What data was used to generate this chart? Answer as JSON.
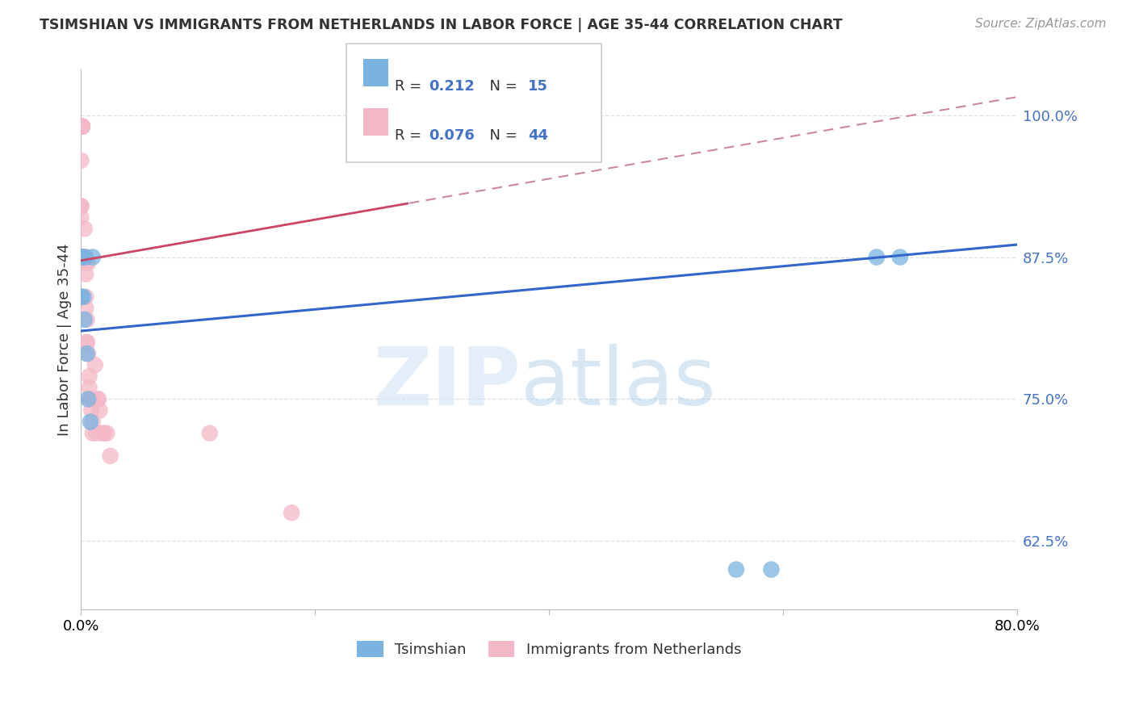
{
  "title": "TSIMSHIAN VS IMMIGRANTS FROM NETHERLANDS IN LABOR FORCE | AGE 35-44 CORRELATION CHART",
  "source": "Source: ZipAtlas.com",
  "ylabel": "In Labor Force | Age 35-44",
  "x_min": 0.0,
  "x_max": 0.8,
  "y_min": 0.565,
  "y_max": 1.04,
  "tsimshian_x": [
    0.0,
    0.0,
    0.0,
    0.0,
    0.002,
    0.003,
    0.004,
    0.005,
    0.006,
    0.008,
    0.01,
    0.56,
    0.59,
    0.68,
    0.7
  ],
  "tsimshian_y": [
    0.875,
    0.875,
    0.875,
    0.84,
    0.84,
    0.82,
    0.875,
    0.79,
    0.75,
    0.73,
    0.875,
    0.6,
    0.6,
    0.875,
    0.875
  ],
  "netherlands_x": [
    0.0,
    0.0,
    0.0,
    0.0,
    0.0,
    0.001,
    0.001,
    0.001,
    0.001,
    0.002,
    0.002,
    0.002,
    0.002,
    0.003,
    0.003,
    0.003,
    0.004,
    0.004,
    0.004,
    0.004,
    0.005,
    0.005,
    0.005,
    0.006,
    0.006,
    0.007,
    0.007,
    0.008,
    0.008,
    0.009,
    0.009,
    0.01,
    0.01,
    0.012,
    0.013,
    0.014,
    0.015,
    0.016,
    0.018,
    0.02,
    0.022,
    0.025,
    0.11,
    0.18
  ],
  "netherlands_y": [
    0.99,
    0.96,
    0.92,
    0.92,
    0.91,
    0.99,
    0.99,
    0.99,
    0.99,
    0.875,
    0.875,
    0.875,
    0.875,
    0.9,
    0.875,
    0.875,
    0.87,
    0.86,
    0.84,
    0.83,
    0.82,
    0.8,
    0.8,
    0.79,
    0.87,
    0.77,
    0.76,
    0.75,
    0.75,
    0.75,
    0.74,
    0.73,
    0.72,
    0.78,
    0.72,
    0.75,
    0.75,
    0.74,
    0.72,
    0.72,
    0.72,
    0.7,
    0.72,
    0.65
  ],
  "blue_scatter_color": "#7ab3e0",
  "pink_scatter_color": "#f4b8c8",
  "blue_line_color": "#3366cc",
  "pink_line_color": "#cc4466",
  "pink_dash_color": "#cc8899",
  "grid_color": "#dddddd",
  "y_tick_color": "#4472c4",
  "title_color": "#333333",
  "source_color": "#999999",
  "legend_blue_r": "R = ",
  "legend_blue_r_val": "0.212",
  "legend_blue_n": "N = ",
  "legend_blue_n_val": "15",
  "legend_pink_r": "R = ",
  "legend_pink_r_val": "0.076",
  "legend_pink_n": "N = ",
  "legend_pink_n_val": "44",
  "blue_trend_intercept": 0.81,
  "blue_trend_slope": 0.095,
  "pink_trend_intercept": 0.872,
  "pink_trend_slope": 0.18
}
